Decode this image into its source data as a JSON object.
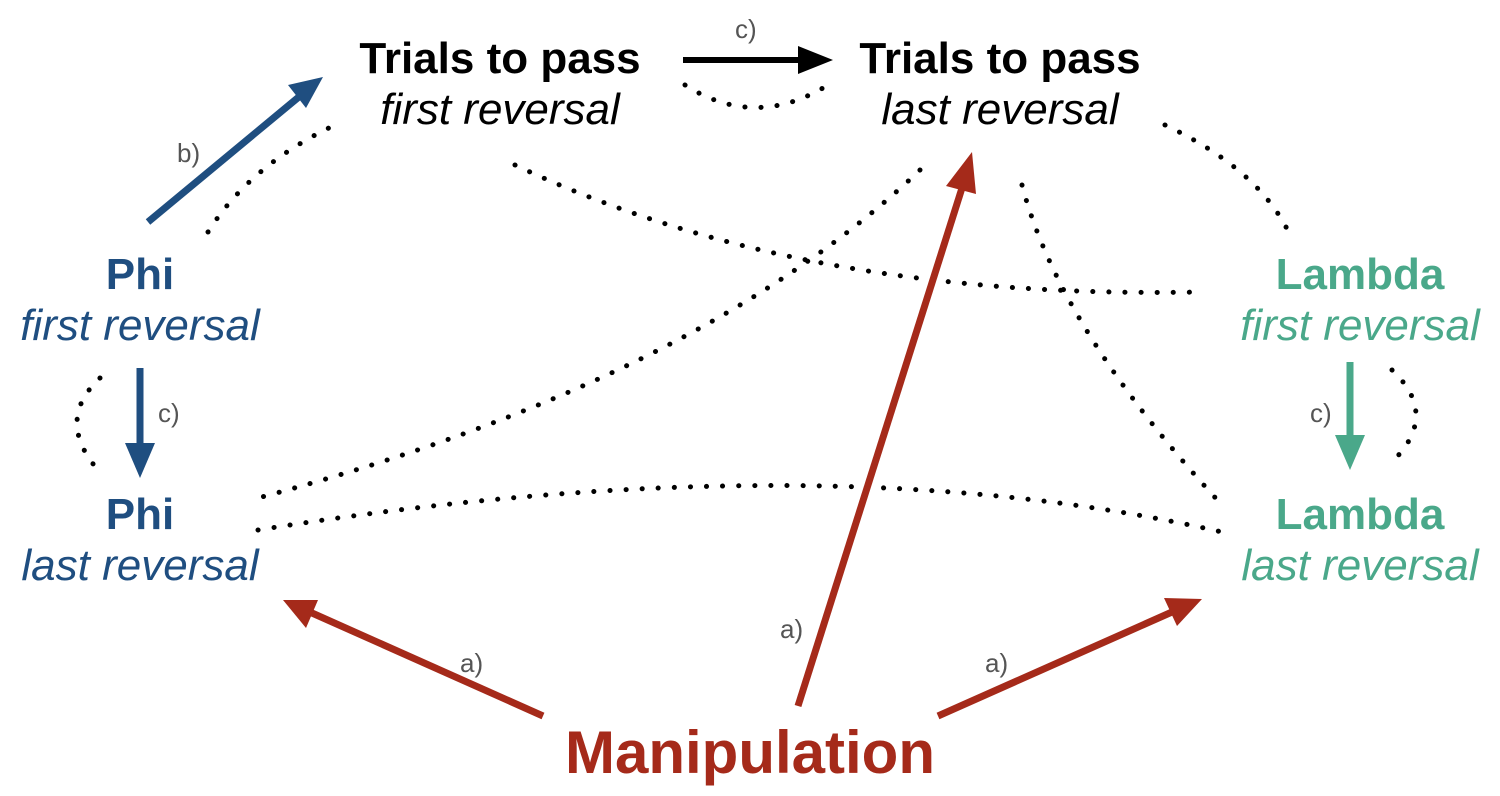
{
  "colors": {
    "black": "#000000",
    "phi": "#1f4e80",
    "lambda": "#4aa88a",
    "manipulation": "#a52a1a",
    "label_grey": "#555555"
  },
  "nodes": {
    "trials_first": {
      "line1": "Trials to pass",
      "line2": "first reversal"
    },
    "trials_last": {
      "line1": "Trials to pass",
      "line2": "last reversal"
    },
    "phi_first": {
      "line1": "Phi",
      "line2": "first reversal"
    },
    "phi_last": {
      "line1": "Phi",
      "line2": "last reversal"
    },
    "lambda_first": {
      "line1": "Lambda",
      "line2": "first reversal"
    },
    "lambda_last": {
      "line1": "Lambda",
      "line2": "last reversal"
    },
    "manipulation": {
      "line1": "Manipulation"
    }
  },
  "edge_labels": {
    "a_phi": "a)",
    "a_trials": "a)",
    "a_lambda": "a)",
    "b_phi_trials": "b)",
    "c_trials": "c)",
    "c_phi": "c)",
    "c_lambda": "c)"
  }
}
